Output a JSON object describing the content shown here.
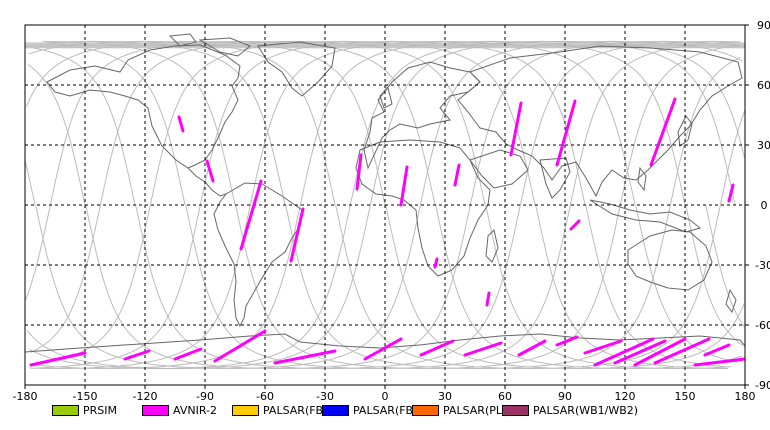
{
  "map": {
    "x_ticks": [
      -180,
      -150,
      -120,
      -90,
      -60,
      -30,
      0,
      30,
      60,
      90,
      120,
      150,
      180
    ],
    "y_ticks": [
      90,
      60,
      30,
      0,
      -30,
      -60,
      -90
    ],
    "lon_range": [
      -180,
      180
    ],
    "lat_range": [
      -90,
      90
    ],
    "grid": "dashed",
    "colors": {
      "frame": "#000000",
      "grid": "#000000",
      "orbit": "#bbbbbb",
      "coast": "#666666",
      "swath": "#ff00ff"
    }
  },
  "legend": {
    "items": [
      {
        "label": "PRSIM",
        "color": "#99cc00"
      },
      {
        "label": "AVNIR-2",
        "color": "#ff00ff"
      },
      {
        "label": "PALSAR(FBS)",
        "color": "#ffcc00"
      },
      {
        "label": "PALSAR(FBD)",
        "color": "#0000ff"
      },
      {
        "label": "PALSAR(PLR)",
        "color": "#ff6600"
      },
      {
        "label": "PALSAR(WB1/WB2)",
        "color": "#993366"
      }
    ]
  },
  "swaths": [
    {
      "sensor": "AVNIR-2",
      "from": [
        -103,
        44
      ],
      "to": [
        -101,
        37
      ]
    },
    {
      "sensor": "AVNIR-2",
      "from": [
        -89,
        22
      ],
      "to": [
        -86,
        12
      ]
    },
    {
      "sensor": "AVNIR-2",
      "from": [
        -62,
        12
      ],
      "to": [
        -72,
        -22
      ]
    },
    {
      "sensor": "AVNIR-2",
      "from": [
        -41,
        -2
      ],
      "to": [
        -47,
        -28
      ]
    },
    {
      "sensor": "AVNIR-2",
      "from": [
        -12,
        25
      ],
      "to": [
        -14,
        8
      ]
    },
    {
      "sensor": "AVNIR-2",
      "from": [
        11,
        19
      ],
      "to": [
        8,
        0
      ]
    },
    {
      "sensor": "AVNIR-2",
      "from": [
        37,
        20
      ],
      "to": [
        35,
        10
      ]
    },
    {
      "sensor": "AVNIR-2",
      "from": [
        26,
        -27
      ],
      "to": [
        25,
        -31
      ]
    },
    {
      "sensor": "AVNIR-2",
      "from": [
        52,
        -44
      ],
      "to": [
        51,
        -50
      ]
    },
    {
      "sensor": "AVNIR-2",
      "from": [
        68,
        51
      ],
      "to": [
        63,
        25
      ]
    },
    {
      "sensor": "AVNIR-2",
      "from": [
        95,
        52
      ],
      "to": [
        86,
        20
      ]
    },
    {
      "sensor": "AVNIR-2",
      "from": [
        97,
        -8
      ],
      "to": [
        93,
        -12
      ]
    },
    {
      "sensor": "AVNIR-2",
      "from": [
        145,
        53
      ],
      "to": [
        133,
        20
      ]
    },
    {
      "sensor": "AVNIR-2",
      "from": [
        174,
        10
      ],
      "to": [
        172,
        2
      ]
    },
    {
      "sensor": "AVNIR-2",
      "from": [
        -177,
        -80
      ],
      "to": [
        -150,
        -74
      ]
    },
    {
      "sensor": "AVNIR-2",
      "from": [
        -130,
        -77
      ],
      "to": [
        -118,
        -73
      ]
    },
    {
      "sensor": "AVNIR-2",
      "from": [
        -105,
        -77
      ],
      "to": [
        -92,
        -72
      ]
    },
    {
      "sensor": "AVNIR-2",
      "from": [
        -85,
        -78
      ],
      "to": [
        -60,
        -63
      ]
    },
    {
      "sensor": "AVNIR-2",
      "from": [
        -55,
        -79
      ],
      "to": [
        -25,
        -73
      ]
    },
    {
      "sensor": "AVNIR-2",
      "from": [
        -10,
        -77
      ],
      "to": [
        8,
        -67
      ]
    },
    {
      "sensor": "AVNIR-2",
      "from": [
        18,
        -75
      ],
      "to": [
        34,
        -68
      ]
    },
    {
      "sensor": "AVNIR-2",
      "from": [
        40,
        -75
      ],
      "to": [
        58,
        -69
      ]
    },
    {
      "sensor": "AVNIR-2",
      "from": [
        67,
        -75
      ],
      "to": [
        80,
        -68
      ]
    },
    {
      "sensor": "AVNIR-2",
      "from": [
        86,
        -70
      ],
      "to": [
        96,
        -66
      ]
    },
    {
      "sensor": "AVNIR-2",
      "from": [
        100,
        -74
      ],
      "to": [
        118,
        -68
      ]
    },
    {
      "sensor": "AVNIR-2",
      "from": [
        105,
        -80
      ],
      "to": [
        134,
        -67
      ]
    },
    {
      "sensor": "AVNIR-2",
      "from": [
        115,
        -79
      ],
      "to": [
        140,
        -68
      ]
    },
    {
      "sensor": "AVNIR-2",
      "from": [
        125,
        -80
      ],
      "to": [
        150,
        -67
      ]
    },
    {
      "sensor": "AVNIR-2",
      "from": [
        135,
        -79
      ],
      "to": [
        162,
        -67
      ]
    },
    {
      "sensor": "AVNIR-2",
      "from": [
        160,
        -75
      ],
      "to": [
        172,
        -70
      ]
    },
    {
      "sensor": "AVNIR-2",
      "from": [
        155,
        -80
      ],
      "to": [
        180,
        -77
      ]
    }
  ]
}
